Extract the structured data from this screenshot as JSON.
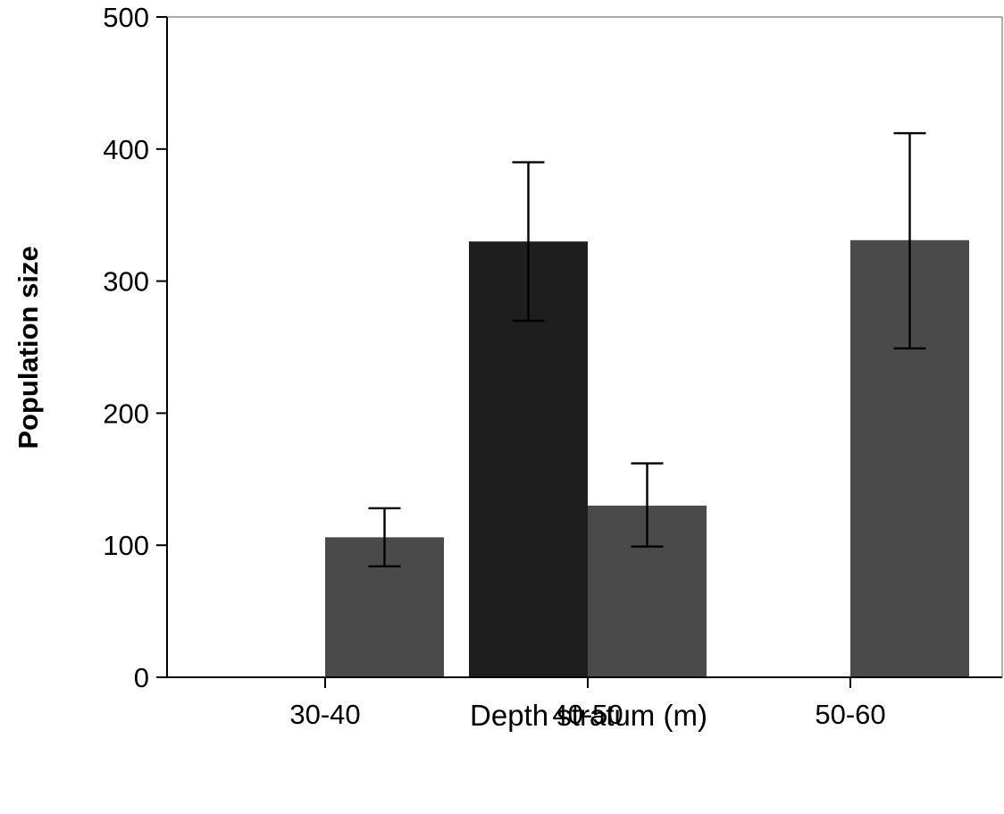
{
  "chart_data": {
    "type": "bar",
    "title": "",
    "xlabel": "Depth stratum (m)",
    "ylabel": "Population size",
    "categories": [
      "30-40",
      "40-50",
      "50-60"
    ],
    "ylim": [
      0,
      500
    ],
    "yticks": [
      0,
      100,
      200,
      300,
      400,
      500
    ],
    "grid": false,
    "legend": "none",
    "series": [
      {
        "color": "#1e1e1e",
        "values": [
          null,
          330,
          null
        ],
        "error_low": [
          null,
          270,
          null
        ],
        "error_high": [
          null,
          390,
          null
        ]
      },
      {
        "color": "#4a4a4a",
        "values": [
          106,
          130,
          331
        ],
        "error_low": [
          84,
          99,
          249
        ],
        "error_high": [
          128,
          162,
          412
        ]
      }
    ]
  }
}
